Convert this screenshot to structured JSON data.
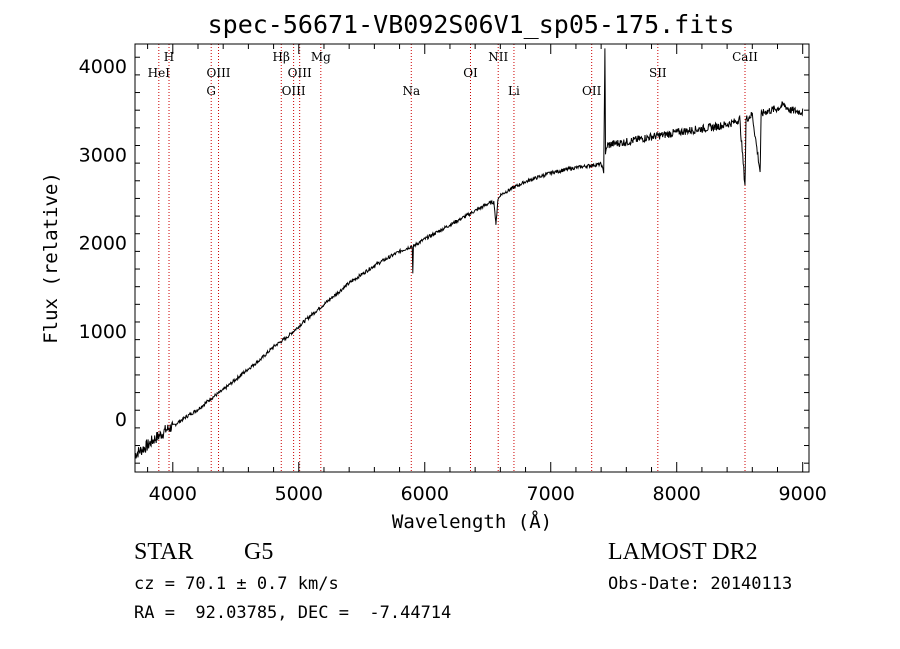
{
  "chart_data": {
    "type": "line",
    "title": "spec-56671-VB092S06V1_sp05-175.fits",
    "xlabel": "Wavelength (Å)",
    "ylabel": "Flux (relative)",
    "xlim": [
      3700,
      9050
    ],
    "ylim": [
      -600,
      4250
    ],
    "x_ticks": [
      4000,
      5000,
      6000,
      7000,
      8000,
      9000
    ],
    "y_ticks": [
      0,
      1000,
      2000,
      3000,
      4000
    ],
    "grid": false,
    "line_color": "#000000",
    "marker_color": "#cc0000",
    "series": [
      {
        "x": [
          3700,
          3750,
          3800,
          3850,
          3900,
          3950,
          4000,
          4100,
          4200,
          4300,
          4400,
          4500,
          4600,
          4700,
          4800,
          4900,
          5000,
          5100,
          5200,
          5300,
          5400,
          5500,
          5600,
          5700,
          5800,
          5900,
          5905,
          5910,
          6000,
          6100,
          6200,
          6300,
          6400,
          6500,
          6550,
          6565,
          6580,
          6600,
          6700,
          6800,
          6900,
          7000,
          7100,
          7200,
          7300,
          7400,
          7420,
          7430,
          7435,
          7440,
          7450,
          7500,
          7600,
          7700,
          7800,
          7900,
          8000,
          8100,
          8200,
          8300,
          8400,
          8450,
          8500,
          8542,
          8550,
          8600,
          8662,
          8670,
          8700,
          8800,
          8850,
          8900,
          9000
        ],
        "y": [
          -400,
          -350,
          -300,
          -230,
          -180,
          -120,
          -80,
          20,
          110,
          230,
          330,
          450,
          570,
          680,
          820,
          920,
          1050,
          1180,
          1300,
          1420,
          1540,
          1640,
          1740,
          1820,
          1900,
          1960,
          1650,
          1960,
          2040,
          2120,
          2200,
          2280,
          2360,
          2440,
          2460,
          2200,
          2480,
          2540,
          2620,
          2690,
          2740,
          2790,
          2820,
          2850,
          2870,
          2890,
          2800,
          4200,
          3000,
          3050,
          3100,
          3120,
          3140,
          3170,
          3200,
          3220,
          3250,
          3270,
          3290,
          3310,
          3340,
          3360,
          3400,
          2650,
          3400,
          3450,
          2800,
          3450,
          3480,
          3520,
          3560,
          3500,
          3480
        ]
      }
    ],
    "lines": [
      {
        "label": "HeI",
        "x": 3889,
        "row": 2
      },
      {
        "label": "H",
        "x": 3970,
        "row": 1
      },
      {
        "label": "G",
        "x": 4305,
        "row": 3
      },
      {
        "label": "OIII",
        "x": 4363,
        "row": 2
      },
      {
        "label": "Hβ",
        "x": 4861,
        "row": 1
      },
      {
        "label": "OIII",
        "x": 4959,
        "row": 3
      },
      {
        "label": "OIII",
        "x": 5007,
        "row": 2
      },
      {
        "label": "Mg",
        "x": 5175,
        "row": 1
      },
      {
        "label": "Na",
        "x": 5893,
        "row": 3
      },
      {
        "label": "OI",
        "x": 6363,
        "row": 2
      },
      {
        "label": "NII",
        "x": 6583,
        "row": 1
      },
      {
        "label": "Li",
        "x": 6708,
        "row": 3
      },
      {
        "label": "OII",
        "x": 7325,
        "row": 3
      },
      {
        "label": "SII",
        "x": 7850,
        "row": 2
      },
      {
        "label": "CaII",
        "x": 8542,
        "row": 1
      }
    ]
  },
  "info": {
    "class_label": "STAR",
    "subclass": "G5",
    "survey": "LAMOST DR2",
    "cz": "cz = 70.1 ± 0.7 km/s",
    "obs_date": "Obs-Date: 20140113",
    "coords": "RA =  92.03785, DEC =  -7.44714"
  }
}
